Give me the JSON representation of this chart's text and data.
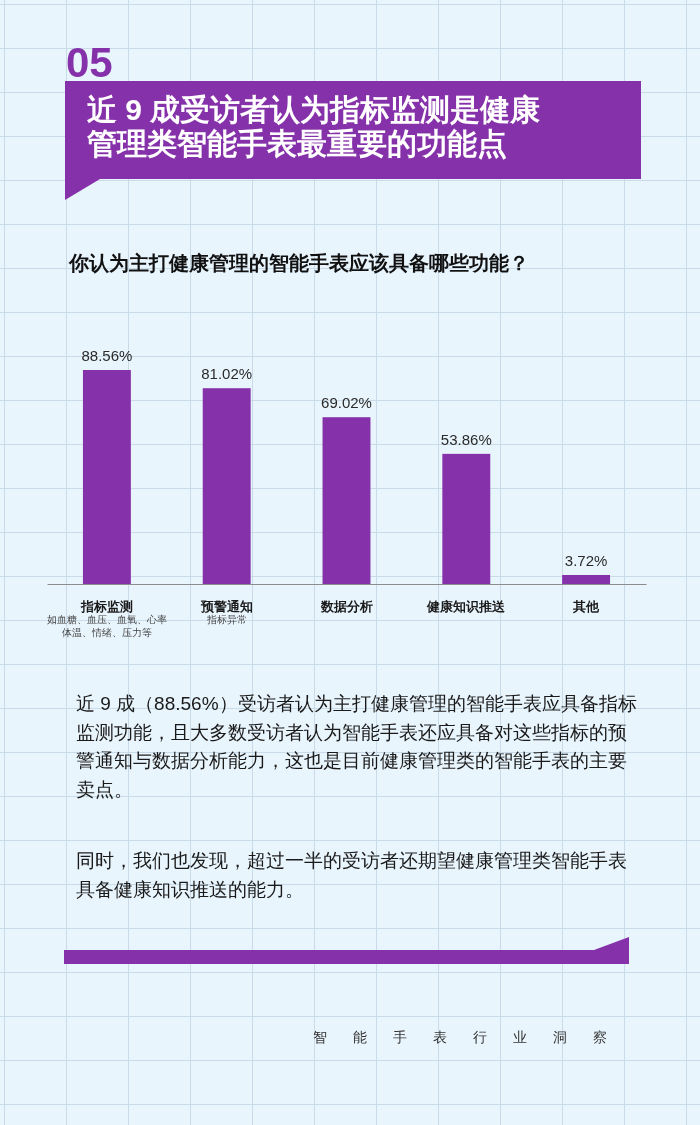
{
  "chart_data": {
    "type": "bar",
    "title": "近 9 成受访者认为指标监测是健康管理类智能手表最重要的功能点",
    "subtitle": "你认为主打健康管理的智能手表应该具备哪些功能？",
    "categories": [
      "指标监测",
      "预警通知",
      "数据分析",
      "健康知识推送",
      "其他"
    ],
    "values": [
      88.56,
      81.02,
      69.02,
      53.86,
      3.72
    ],
    "value_labels": [
      "88.56%",
      "81.02%",
      "69.02%",
      "53.86%",
      "3.72%"
    ],
    "color": "#8531a9",
    "annotations": [
      "05",
      "如血糖、血压、血氧、心率体温、情绪、压力等",
      "指标异常",
      "近 9 成（88.56%）受访者认为主打健康管理的智能手表应具备指标监测功能，且大多数受访者认为智能手表还应具备对这些指标的预警通知与数据分析能力，这也是目前健康管理类的智能手表的主要卖点。",
      "同时，我们也发现，超过一半的受访者还期望健康管理类智能手表具备健康知识推送的能力。",
      "智能手表行业洞察"
    ]
  }
}
